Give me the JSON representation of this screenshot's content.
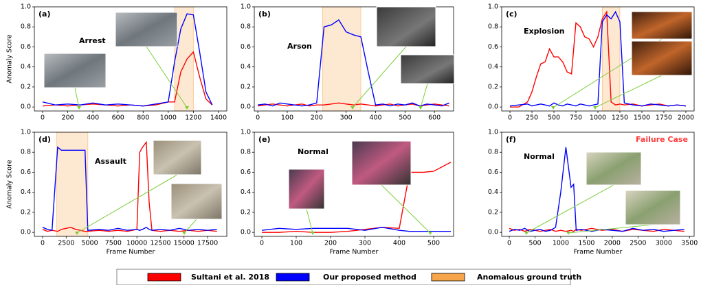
{
  "chart_data": [
    {
      "type": "line",
      "panel_label": "(a)",
      "annotation": "Arrest",
      "ylabel": "Anomaly Score",
      "x": [
        0,
        100,
        200,
        300,
        400,
        500,
        600,
        700,
        800,
        900,
        1000,
        1050,
        1100,
        1150,
        1200,
        1250,
        1300,
        1350
      ],
      "series": [
        {
          "name": "Sultani et al. 2018",
          "color": "#ff0000",
          "values": [
            0.01,
            0.02,
            0.01,
            0.02,
            0.03,
            0.02,
            0.01,
            0.02,
            0.01,
            0.02,
            0.05,
            0.05,
            0.35,
            0.48,
            0.55,
            0.3,
            0.08,
            0.02
          ]
        },
        {
          "name": "Our proposed method",
          "color": "#0000ff",
          "values": [
            0.05,
            0.02,
            0.03,
            0.02,
            0.04,
            0.02,
            0.03,
            0.02,
            0.01,
            0.03,
            0.05,
            0.45,
            0.78,
            0.93,
            0.92,
            0.55,
            0.15,
            0.02
          ]
        }
      ],
      "ground_truth": [
        1050,
        1200
      ],
      "xlim": [
        -66,
        1466
      ],
      "xticks": [
        0,
        200,
        400,
        600,
        800,
        1000,
        1200,
        1400
      ],
      "ylim": [
        -0.04,
        1.0
      ],
      "yticks": [
        {
          "value": 0,
          "label": "0.0"
        },
        0.2,
        0.4,
        0.6,
        0.8,
        {
          "value": 1,
          "label": "1.0"
        }
      ]
    },
    {
      "type": "line",
      "panel_label": "(b)",
      "annotation": "Arson",
      "x": [
        0,
        25,
        50,
        75,
        100,
        125,
        150,
        175,
        200,
        225,
        250,
        275,
        300,
        325,
        350,
        375,
        400,
        425,
        450,
        475,
        500,
        525,
        550,
        575,
        600,
        625,
        650
      ],
      "series": [
        {
          "name": "Sultani et al. 2018",
          "color": "#ff0000",
          "values": [
            0.01,
            0.02,
            0.03,
            0.02,
            0.01,
            0.02,
            0.03,
            0.01,
            0.02,
            0.02,
            0.03,
            0.04,
            0.03,
            0.02,
            0.03,
            0.02,
            0.01,
            0.02,
            0.03,
            0.01,
            0.02,
            0.03,
            0.01,
            0.02,
            0.03,
            0.02,
            0.01
          ]
        },
        {
          "name": "Our proposed method",
          "color": "#0000ff",
          "values": [
            0.02,
            0.03,
            0.01,
            0.04,
            0.03,
            0.02,
            0.01,
            0.02,
            0.04,
            0.8,
            0.82,
            0.87,
            0.75,
            0.72,
            0.7,
            0.35,
            0.02,
            0.03,
            0.01,
            0.03,
            0.02,
            0.04,
            0.01,
            0.03,
            0.02,
            0.01,
            0.04
          ]
        }
      ],
      "ground_truth": [
        220,
        350
      ],
      "xlim": [
        -12,
        665
      ],
      "xticks": [
        0,
        100,
        200,
        300,
        400,
        500,
        600
      ],
      "ylim": [
        -0.04,
        1.0
      ],
      "yticks": [
        {
          "value": 0,
          "label": "0.0"
        },
        0.2,
        0.4,
        0.6,
        0.8,
        {
          "value": 1,
          "label": "1.0"
        }
      ]
    },
    {
      "type": "line",
      "panel_label": "(c)",
      "annotation": "Explosion",
      "x": [
        0,
        100,
        200,
        250,
        300,
        350,
        400,
        450,
        500,
        550,
        600,
        650,
        700,
        750,
        800,
        850,
        900,
        950,
        1000,
        1050,
        1100,
        1150,
        1200,
        1250,
        1300,
        1400,
        1500,
        1600,
        1700,
        1800,
        1900,
        2000
      ],
      "series": [
        {
          "name": "Sultani et al. 2018",
          "color": "#ff0000",
          "values": [
            0,
            0,
            0.05,
            0.15,
            0.3,
            0.43,
            0.45,
            0.58,
            0.5,
            0.5,
            0.45,
            0.35,
            0.33,
            0.84,
            0.8,
            0.7,
            0.68,
            0.6,
            0.7,
            0.88,
            0.95,
            0.05,
            0.02,
            0.03,
            0.02,
            0.03,
            0.01,
            0.02,
            0.03,
            0.01,
            0.02,
            0.01
          ]
        },
        {
          "name": "Our proposed method",
          "color": "#0000ff",
          "values": [
            0.01,
            0.02,
            0.03,
            0.01,
            0.02,
            0.03,
            0.02,
            0.01,
            0.04,
            0.02,
            0.01,
            0.03,
            0.02,
            0.01,
            0.03,
            0.02,
            0.01,
            0.02,
            0.03,
            0.85,
            0.92,
            0.88,
            0.95,
            0.85,
            0.04,
            0.02,
            0.01,
            0.03,
            0.02,
            0.01,
            0.02,
            0.01
          ]
        }
      ],
      "ground_truth": [
        1050,
        1250
      ],
      "xlim": [
        -94,
        2094
      ],
      "xticks": [
        0,
        250,
        500,
        750,
        1000,
        1250,
        1500,
        1750,
        2000
      ],
      "ylim": [
        -0.04,
        1.0
      ],
      "yticks": [
        {
          "value": 0,
          "label": "0.0"
        },
        0.2,
        0.4,
        0.6,
        0.8,
        {
          "value": 1,
          "label": "1.0"
        }
      ]
    },
    {
      "type": "line",
      "panel_label": "(d)",
      "annotation": "Assault",
      "ylabel": "Anomaly Score",
      "xlabel": "Frame Number",
      "x": [
        0,
        500,
        1000,
        1600,
        2000,
        2500,
        3000,
        3500,
        4000,
        4500,
        4800,
        6000,
        7000,
        8000,
        9000,
        10000,
        10300,
        10600,
        11000,
        11300,
        11600,
        12500,
        13500,
        14500,
        15500,
        16500,
        17500,
        18500
      ],
      "series": [
        {
          "name": "Sultani et al. 2018",
          "color": "#ff0000",
          "values": [
            0.03,
            0.01,
            0.02,
            0.01,
            0.03,
            0.04,
            0.05,
            0.03,
            0.02,
            0.01,
            0.01,
            0.02,
            0.01,
            0.02,
            0.01,
            0.03,
            0.8,
            0.85,
            0.9,
            0.3,
            0.02,
            0.01,
            0.02,
            0.01,
            0.02,
            0.01,
            0.02,
            0.01
          ]
        },
        {
          "name": "Our proposed method",
          "color": "#0000ff",
          "values": [
            0.05,
            0.03,
            0.02,
            0.85,
            0.82,
            0.82,
            0.82,
            0.82,
            0.82,
            0.82,
            0.02,
            0.03,
            0.02,
            0.04,
            0.02,
            0.03,
            0.02,
            0.03,
            0.05,
            0.03,
            0.02,
            0.03,
            0.02,
            0.04,
            0.02,
            0.03,
            0.02,
            0.03
          ]
        }
      ],
      "ground_truth": [
        1500,
        4800
      ],
      "xlim": [
        -875,
        19540
      ],
      "xticks": [
        0,
        2500,
        5000,
        7500,
        10000,
        12500,
        15000,
        17500
      ],
      "ylim": [
        -0.04,
        1.0
      ],
      "yticks": [
        {
          "value": 0,
          "label": "0.0"
        },
        0.2,
        0.4,
        0.6,
        0.8,
        {
          "value": 1,
          "label": "1.0"
        }
      ]
    },
    {
      "type": "line",
      "panel_label": "(e)",
      "annotation": "Normal",
      "xlabel": "Frame Number",
      "x": [
        0,
        50,
        100,
        150,
        200,
        250,
        300,
        350,
        400,
        430,
        470,
        500,
        550
      ],
      "series": [
        {
          "name": "Sultani et al. 2018",
          "color": "#ff0000",
          "values": [
            0,
            0,
            0.01,
            0,
            0,
            0.01,
            0.03,
            0.05,
            0.04,
            0.6,
            0.6,
            0.61,
            0.7
          ]
        },
        {
          "name": "Our proposed method",
          "color": "#0000ff",
          "values": [
            0.02,
            0.04,
            0.03,
            0.04,
            0.04,
            0.04,
            0.02,
            0.05,
            0.02,
            0.01,
            0.01,
            0.01,
            0.01
          ]
        }
      ],
      "ground_truth": null,
      "xlim": [
        -22,
        558
      ],
      "xticks": [
        0,
        100,
        200,
        300,
        400,
        500
      ],
      "ylim": [
        -0.04,
        1.0
      ],
      "yticks": [
        {
          "value": 0,
          "label": "0.0"
        },
        0.2,
        0.4,
        0.6,
        0.8,
        {
          "value": 1,
          "label": "1.0"
        }
      ]
    },
    {
      "type": "line",
      "panel_label": "(f)",
      "annotation": "Normal",
      "note": "Failure Case",
      "xlabel": "Frame Number",
      "x": [
        0,
        100,
        200,
        300,
        400,
        500,
        600,
        700,
        800,
        900,
        1000,
        1100,
        1200,
        1250,
        1300,
        1400,
        1600,
        1800,
        2000,
        2200,
        2400,
        2600,
        2800,
        3000,
        3200,
        3400
      ],
      "series": [
        {
          "name": "Sultani et al. 2018",
          "color": "#ff0000",
          "values": [
            0.04,
            0.02,
            0.03,
            0.01,
            0.03,
            0.02,
            0.01,
            0.02,
            0.03,
            0.01,
            0.02,
            0.01,
            0.02,
            0.01,
            0.03,
            0.02,
            0.04,
            0.02,
            0.03,
            0.01,
            0.03,
            0.02,
            0.01,
            0.03,
            0.02,
            0.01
          ]
        },
        {
          "name": "Our proposed method",
          "color": "#0000ff",
          "values": [
            0.01,
            0.03,
            0.02,
            0.04,
            0.01,
            0.02,
            0.03,
            0.01,
            0.02,
            0.05,
            0.4,
            0.85,
            0.45,
            0.48,
            0.02,
            0.03,
            0.01,
            0.03,
            0.02,
            0.01,
            0.04,
            0.02,
            0.03,
            0.01,
            0.02,
            0.03
          ]
        }
      ],
      "ground_truth": null,
      "xlim": [
        -147,
        3590
      ],
      "xticks": [
        0,
        500,
        1000,
        1500,
        2000,
        2500,
        3000,
        3500
      ],
      "ylim": [
        -0.04,
        1.0
      ],
      "yticks": [
        {
          "value": 0,
          "label": "0.0"
        },
        0.2,
        0.4,
        0.6,
        0.8,
        {
          "value": 1,
          "label": "1.0"
        }
      ]
    }
  ],
  "legend": [
    {
      "name": "Sultani et al. 2018",
      "color": "#ff0000"
    },
    {
      "name": "Our proposed method",
      "color": "#0000ff"
    },
    {
      "name": "Anomalous ground truth",
      "color": "#f7a54a"
    }
  ]
}
